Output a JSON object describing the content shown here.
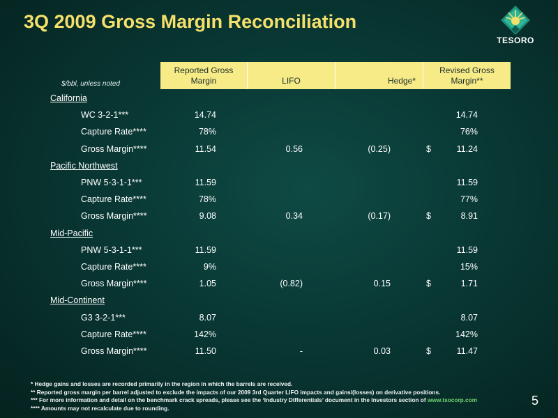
{
  "title": "3Q 2009 Gross Margin Reconciliation",
  "logo_text": "TESORO",
  "units_note": "$/bbl, unless noted",
  "headers": {
    "reported": [
      "Reported Gross",
      "Margin"
    ],
    "lifo": "LIFO",
    "hedge": "Hedge*",
    "revised": [
      "Revised Gross",
      "Margin**"
    ]
  },
  "sections": [
    {
      "name": "California",
      "rows": [
        {
          "label": "WC 3-2-1***",
          "reported": "14.74",
          "lifo": "",
          "hedge": "",
          "dollar": "",
          "revised": "14.74"
        },
        {
          "label": "Capture Rate****",
          "reported": "78%",
          "lifo": "",
          "hedge": "",
          "dollar": "",
          "revised": "76%"
        },
        {
          "label": "Gross Margin****",
          "reported": "11.54",
          "lifo": "0.56",
          "hedge": "(0.25)",
          "dollar": "$",
          "revised": "11.24"
        }
      ]
    },
    {
      "name": "Pacific Northwest",
      "rows": [
        {
          "label": "PNW 5-3-1-1***",
          "reported": "11.59",
          "lifo": "",
          "hedge": "",
          "dollar": "",
          "revised": "11.59"
        },
        {
          "label": "Capture Rate****",
          "reported": "78%",
          "lifo": "",
          "hedge": "",
          "dollar": "",
          "revised": "77%"
        },
        {
          "label": "Gross Margin****",
          "reported": "9.08",
          "lifo": "0.34",
          "hedge": "(0.17)",
          "dollar": "$",
          "revised": "8.91"
        }
      ]
    },
    {
      "name": "Mid-Pacific",
      "rows": [
        {
          "label": "PNW 5-3-1-1***",
          "reported": "11.59",
          "lifo": "",
          "hedge": "",
          "dollar": "",
          "revised": "11.59"
        },
        {
          "label": "Capture Rate****",
          "reported": "9%",
          "lifo": "",
          "hedge": "",
          "dollar": "",
          "revised": "15%"
        },
        {
          "label": "Gross Margin****",
          "reported": "1.05",
          "lifo": "(0.82)",
          "hedge": "0.15",
          "dollar": "$",
          "revised": "1.71"
        }
      ]
    },
    {
      "name": "Mid-Continent",
      "rows": [
        {
          "label": "G3 3-2-1***",
          "reported": "8.07",
          "lifo": "",
          "hedge": "",
          "dollar": "",
          "revised": "8.07"
        },
        {
          "label": "Capture Rate****",
          "reported": "142%",
          "lifo": "",
          "hedge": "",
          "dollar": "",
          "revised": "142%"
        },
        {
          "label": "Gross Margin****",
          "reported": "11.50",
          "lifo": "-",
          "hedge": "0.03",
          "dollar": "$",
          "revised": "11.47"
        }
      ]
    }
  ],
  "footnotes": {
    "f1": "* Hedge gains and losses are recorded primarily in the region in which the barrels are received.",
    "f2": "** Reported gross margin per barrel adjusted to exclude the impacts of our 2009 3rd Quarter LIFO impacts and gains/(losses) on derivative positions.",
    "f3_text": "*** For more information and detail on the benchmark crack spreads, please see the ‘Industry Differentials’ document in the Investors section of",
    "f3_link": "www.tsocorp.com",
    "f4": "**** Amounts may not recalculate due to rounding."
  },
  "page_number": "5",
  "colors": {
    "title": "#f5e16a",
    "header_bg": "#f6eb86",
    "link": "#6fd36f"
  }
}
